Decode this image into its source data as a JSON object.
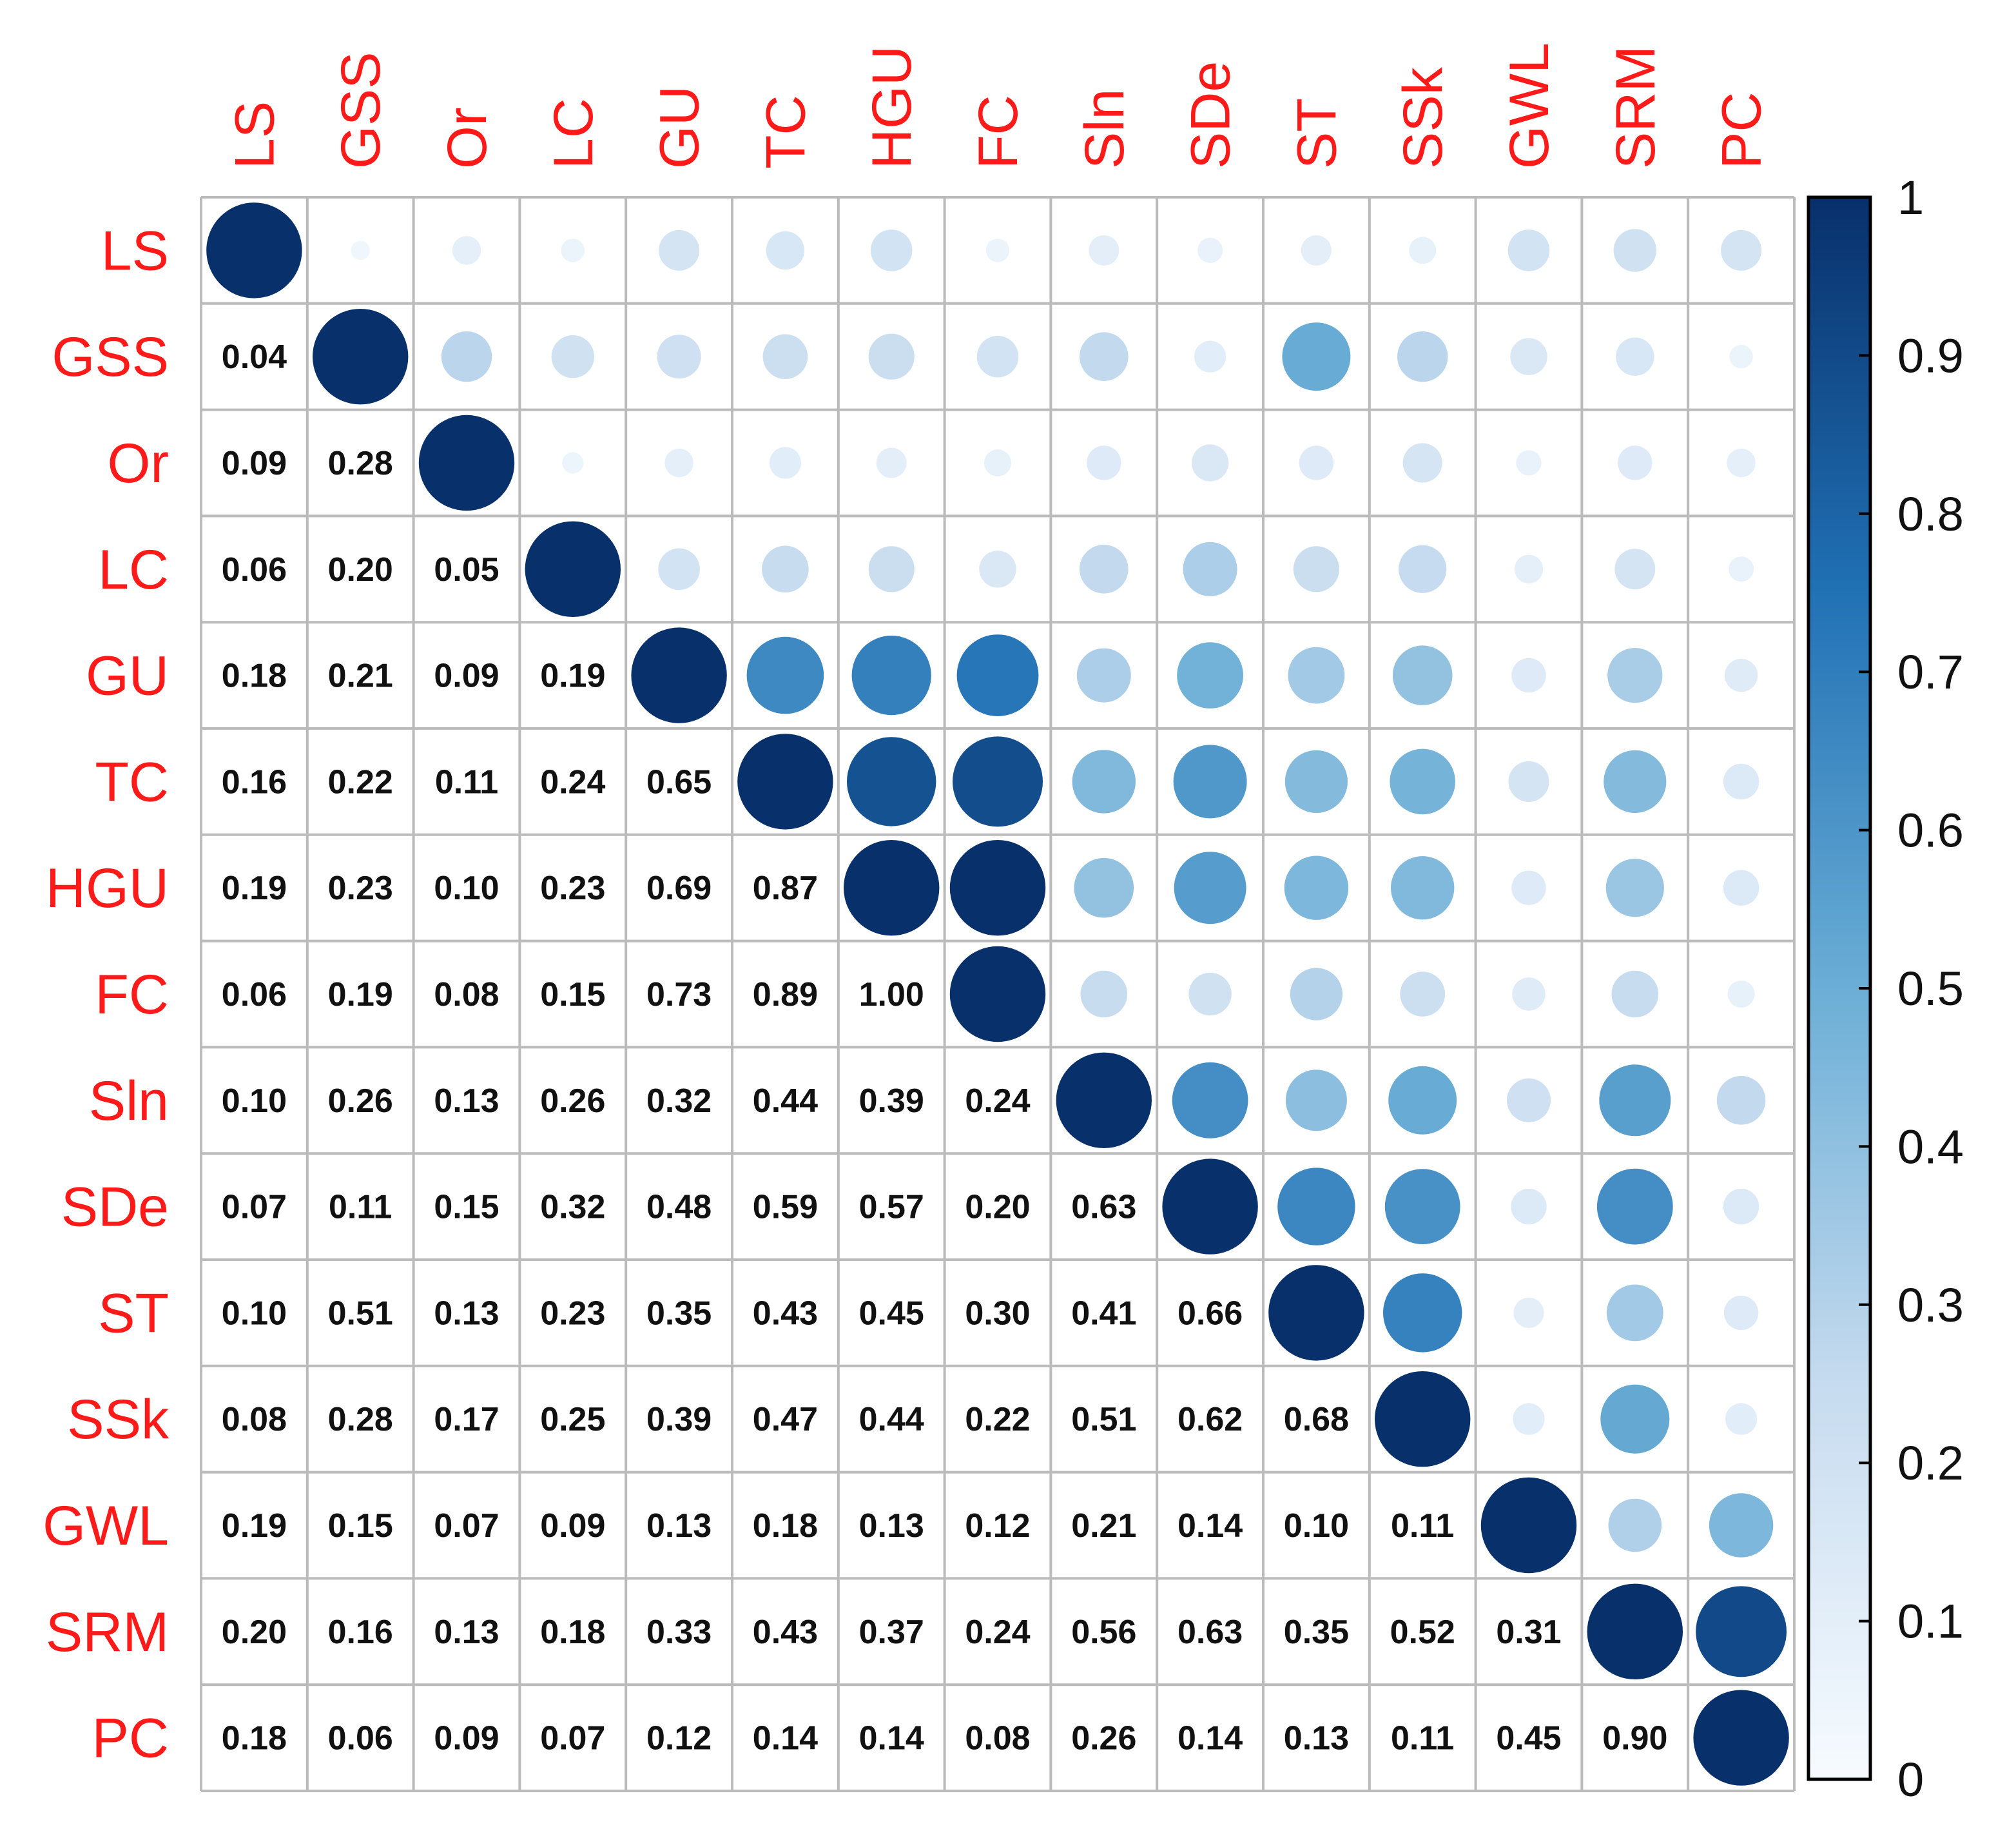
{
  "chart_data": {
    "type": "heatmap",
    "variables": [
      "LS",
      "GSS",
      "Or",
      "LC",
      "GU",
      "TC",
      "HGU",
      "FC",
      "Sln",
      "SDe",
      "ST",
      "SSk",
      "GWL",
      "SRM",
      "PC"
    ],
    "lower_triangle_values": [
      [],
      [
        0.04
      ],
      [
        0.09,
        0.28
      ],
      [
        0.06,
        0.2,
        0.05
      ],
      [
        0.18,
        0.21,
        0.09,
        0.19
      ],
      [
        0.16,
        0.22,
        0.11,
        0.24,
        0.65
      ],
      [
        0.19,
        0.23,
        0.1,
        0.23,
        0.69,
        0.87
      ],
      [
        0.06,
        0.19,
        0.08,
        0.15,
        0.73,
        0.89,
        1.0
      ],
      [
        0.1,
        0.26,
        0.13,
        0.26,
        0.32,
        0.44,
        0.39,
        0.24
      ],
      [
        0.07,
        0.11,
        0.15,
        0.32,
        0.48,
        0.59,
        0.57,
        0.2,
        0.63
      ],
      [
        0.1,
        0.51,
        0.13,
        0.23,
        0.35,
        0.43,
        0.45,
        0.3,
        0.41,
        0.66
      ],
      [
        0.08,
        0.28,
        0.17,
        0.25,
        0.39,
        0.47,
        0.44,
        0.22,
        0.51,
        0.62,
        0.68
      ],
      [
        0.19,
        0.15,
        0.07,
        0.09,
        0.13,
        0.18,
        0.13,
        0.12,
        0.21,
        0.14,
        0.1,
        0.11
      ],
      [
        0.2,
        0.16,
        0.13,
        0.18,
        0.33,
        0.43,
        0.37,
        0.24,
        0.56,
        0.63,
        0.35,
        0.52,
        0.31
      ],
      [
        0.18,
        0.06,
        0.09,
        0.07,
        0.12,
        0.14,
        0.14,
        0.08,
        0.26,
        0.14,
        0.13,
        0.11,
        0.45,
        0.9
      ]
    ],
    "diagonal": 1,
    "value_range": [
      0,
      1
    ],
    "colorbar": {
      "ticks": [
        "0",
        "0.1",
        "0.2",
        "0.3",
        "0.4",
        "0.5",
        "0.6",
        "0.7",
        "0.8",
        "0.9",
        "1"
      ],
      "placement": "right"
    },
    "upper_triangle": "circles",
    "lower_triangle": "numbers",
    "grid": true
  },
  "colors": {
    "label": "#ff1a1a",
    "grid": "#bbbbbb",
    "scale_low": "#f7fbff",
    "scale_mid_low": "#c6dbef",
    "scale_mid": "#6baed6",
    "scale_mid_high": "#2171b5",
    "scale_high": "#08306b"
  }
}
